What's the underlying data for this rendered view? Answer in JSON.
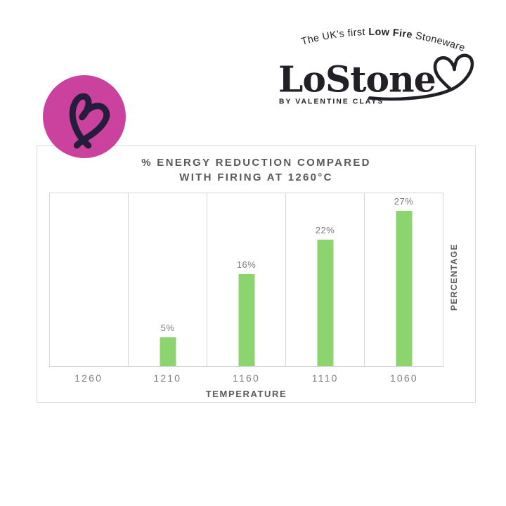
{
  "logo": {
    "tagline_prefix": "The UK’s first ",
    "tagline_bold": "Low Fire",
    "tagline_suffix": " Stoneware",
    "brand": "LoStone",
    "subtitle": "BY VALENTINE CLAYS",
    "text_color": "#221f26"
  },
  "badge": {
    "icon": "heart-scribble-icon",
    "background_color": "#cb429e",
    "heart_color": "#241d3c"
  },
  "chart_data": {
    "type": "bar",
    "title_line1": "% ENERGY REDUCTION COMPARED",
    "title_line2": "WITH FIRING AT 1260°C",
    "categories": [
      "1260",
      "1210",
      "1160",
      "1110",
      "1060"
    ],
    "values": [
      0,
      5,
      16,
      22,
      27
    ],
    "value_labels": [
      "",
      "5%",
      "16%",
      "22%",
      "27%"
    ],
    "xlabel": "TEMPERATURE",
    "ylabel": "PERCENTAGE",
    "ylim": [
      0,
      30
    ],
    "bar_color": "#8bd46e",
    "grid": "vertical category separators, no y ticks",
    "legend": "none"
  }
}
